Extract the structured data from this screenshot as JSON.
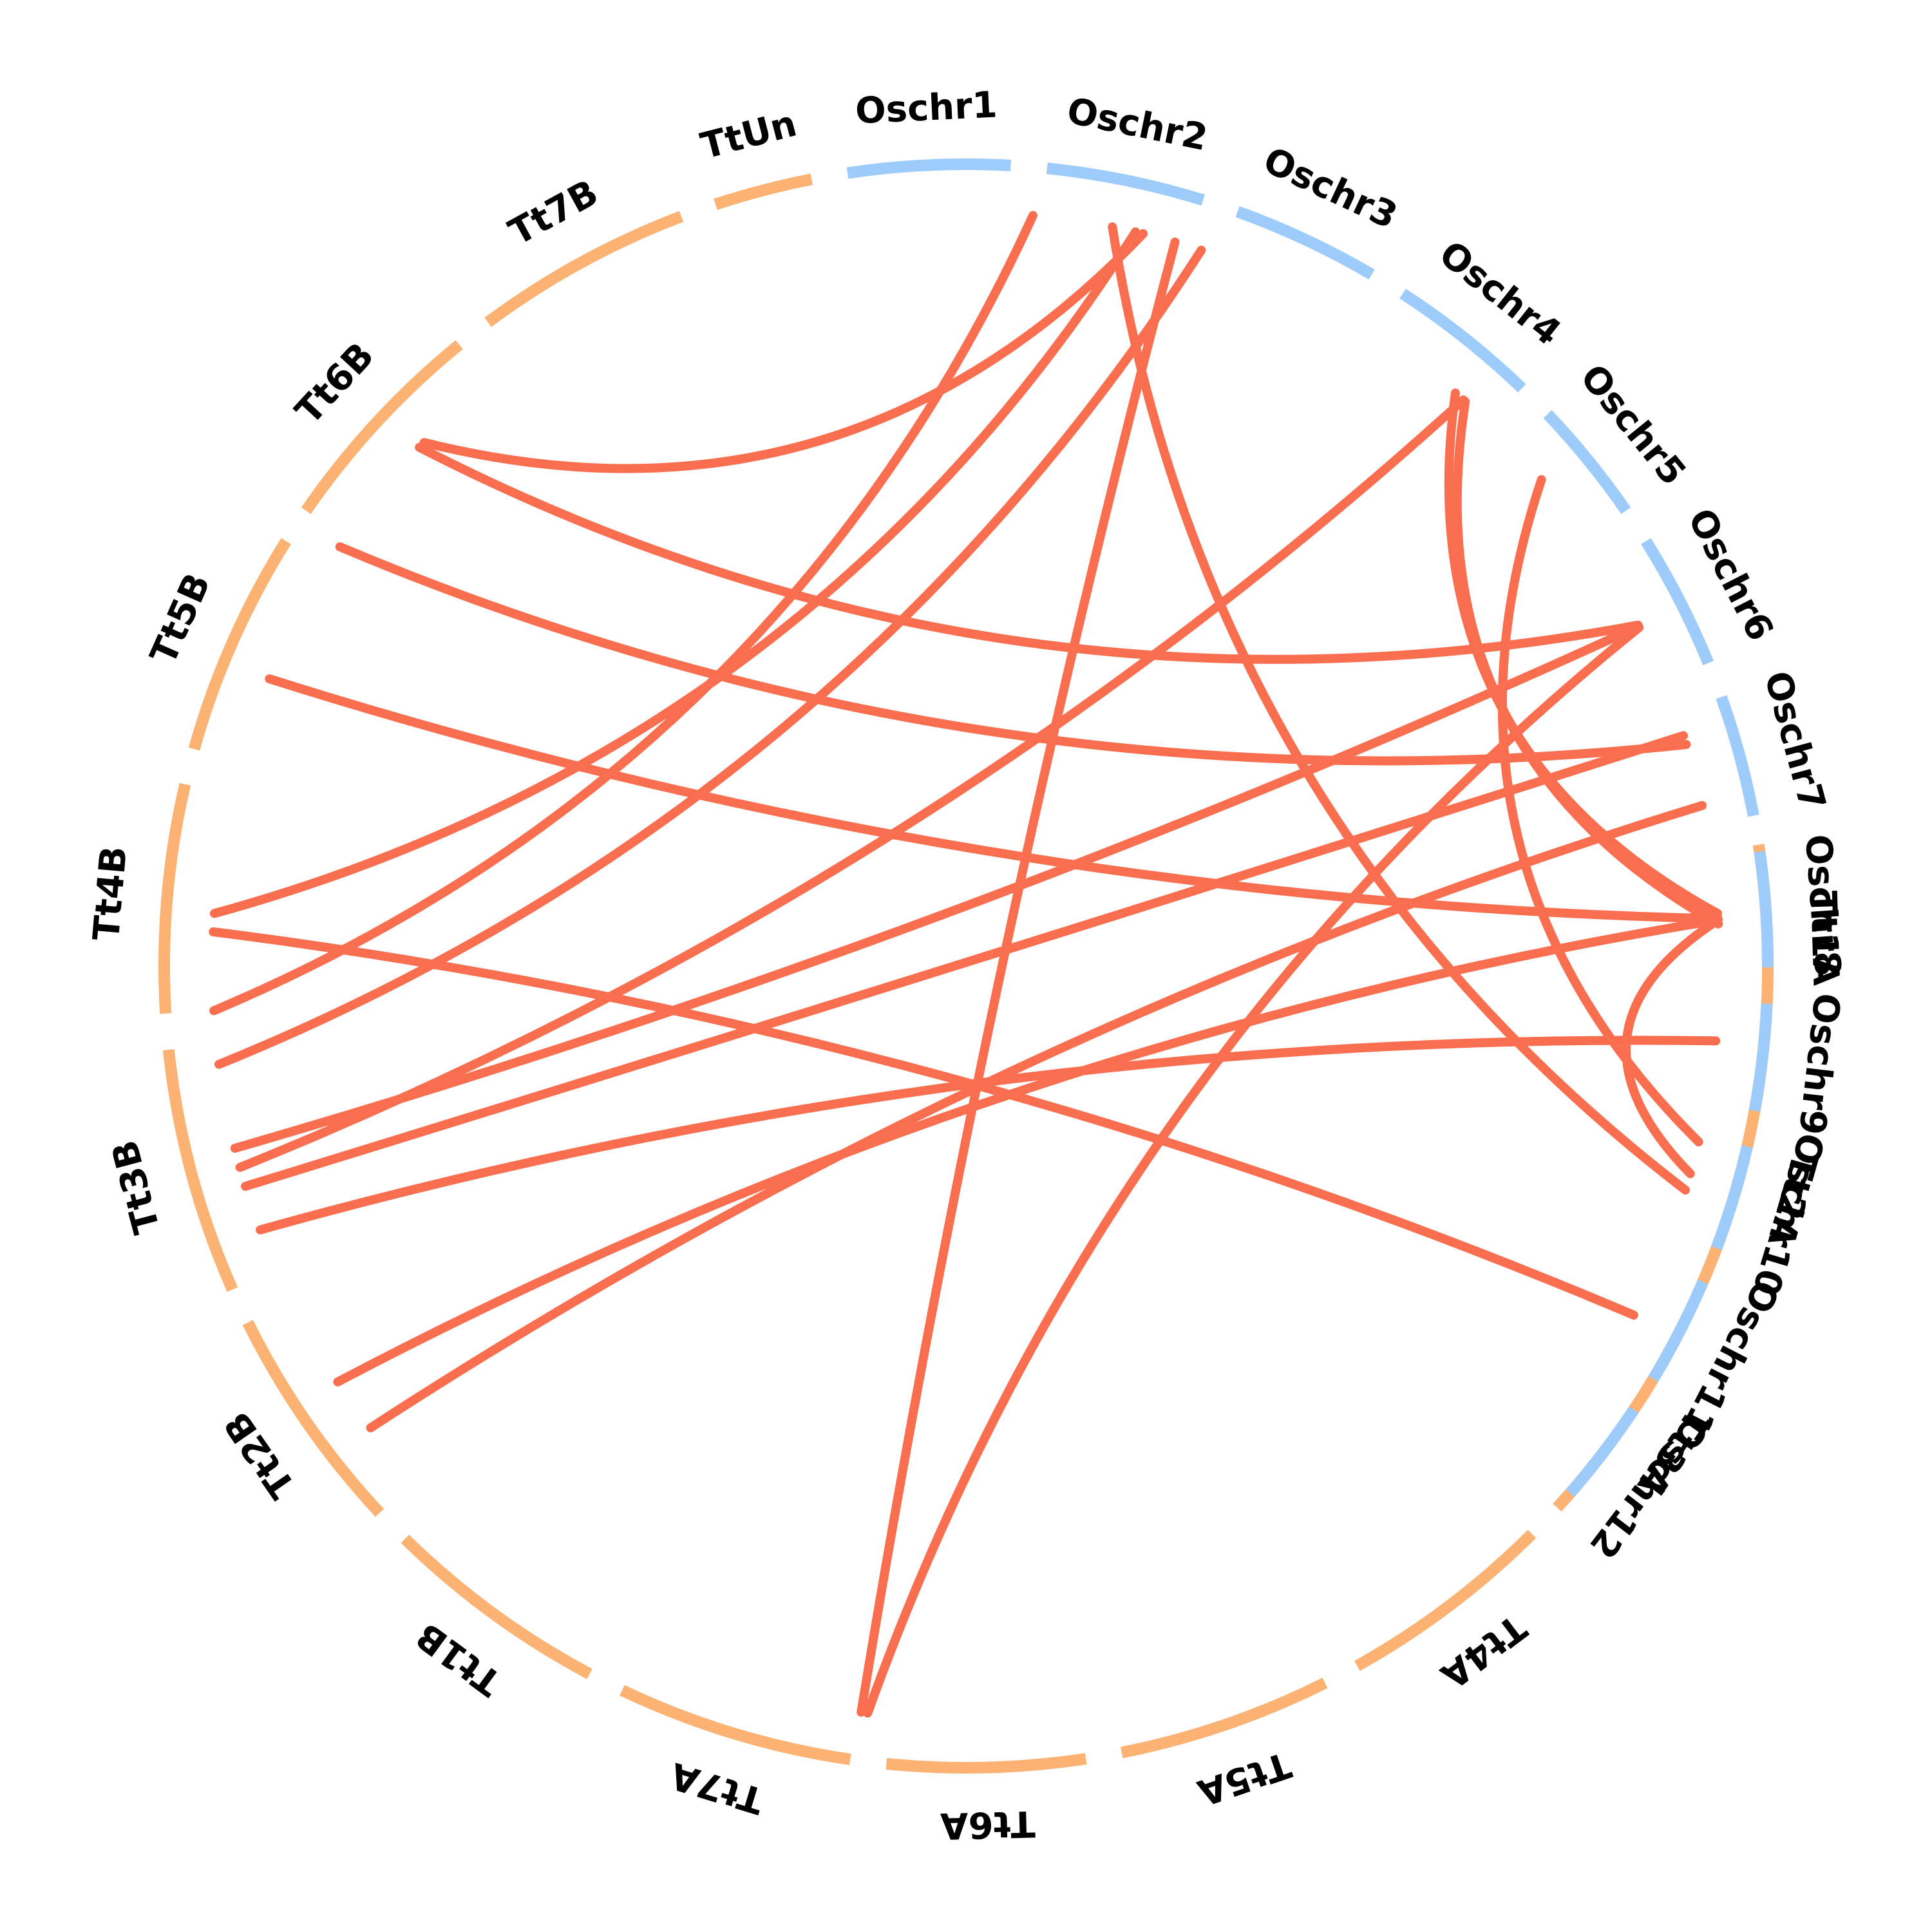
{
  "title": "",
  "segments": [
    {
      "label": "Tt1A",
      "start": 81.3,
      "end": 95.0,
      "group": "Tt"
    },
    {
      "label": "Tt2A",
      "start": 97.6,
      "end": 114.0,
      "group": "Tt"
    },
    {
      "label": "Tt3A",
      "start": 116.6,
      "end": 132.5,
      "group": "Tt"
    },
    {
      "label": "Tt4A",
      "start": 135.1,
      "end": 150.8,
      "group": "Tt"
    },
    {
      "label": "Tt5A",
      "start": 153.4,
      "end": 168.8,
      "group": "Tt"
    },
    {
      "label": "Tt6A",
      "start": 171.4,
      "end": 185.7,
      "group": "Tt"
    },
    {
      "label": "Tt7A",
      "start": 188.3,
      "end": 205.4,
      "group": "Tt"
    },
    {
      "label": "Tt1B",
      "start": 208.0,
      "end": 224.4,
      "group": "Tt"
    },
    {
      "label": "Tt2B",
      "start": 227.0,
      "end": 243.6,
      "group": "Tt"
    },
    {
      "label": "Tt3B",
      "start": 246.2,
      "end": 264.0,
      "group": "Tt"
    },
    {
      "label": "Tt4B",
      "start": 266.6,
      "end": 283.1,
      "group": "Tt"
    },
    {
      "label": "Tt5B",
      "start": 285.7,
      "end": 302.0,
      "group": "Tt"
    },
    {
      "label": "Tt6B",
      "start": 304.6,
      "end": 320.8,
      "group": "Tt"
    },
    {
      "label": "Tt7B",
      "start": 323.4,
      "end": 339.2,
      "group": "Tt"
    },
    {
      "label": "TtUn",
      "start": 341.8,
      "end": 348.9,
      "group": "Tt"
    },
    {
      "label": "Oschr1",
      "start": 351.5,
      "end": 363.2,
      "group": "Os"
    },
    {
      "label": "Oschr2",
      "start": 365.8,
      "end": 377.2,
      "group": "Os"
    },
    {
      "label": "Oschr3",
      "start": 379.8,
      "end": 390.4,
      "group": "Os"
    },
    {
      "label": "Oschr4",
      "start": 393.0,
      "end": 403.9,
      "group": "Os"
    },
    {
      "label": "Oschr5",
      "start": 406.5,
      "end": 415.4,
      "group": "Os"
    },
    {
      "label": "Oschr6",
      "start": 418.0,
      "end": 427.8,
      "group": "Os"
    },
    {
      "label": "Oschr7",
      "start": 430.4,
      "end": 439.2,
      "group": "Os"
    },
    {
      "label": "Oschr8",
      "start": 441.8,
      "end": 450.1,
      "group": "Os"
    },
    {
      "label": "Oschr9",
      "start": 452.7,
      "end": 460.4,
      "group": "Os"
    },
    {
      "label": "Oschr10",
      "start": 463.0,
      "end": 470.6,
      "group": "Os"
    },
    {
      "label": "Oschr11",
      "start": 473.2,
      "end": 481.0,
      "group": "Os"
    },
    {
      "label": "Oschr12",
      "start": 483.6,
      "end": 491.1,
      "group": "Os"
    }
  ],
  "links": [
    {
      "from": 86.0,
      "to": 400.5
    },
    {
      "from": 86.8,
      "to": 401.5
    },
    {
      "from": 103.5,
      "to": 409.8
    },
    {
      "from": 106.0,
      "to": 446.5
    },
    {
      "from": 107.3,
      "to": 371.2
    },
    {
      "from": 187.5,
      "to": 423.3
    },
    {
      "from": 188.0,
      "to": 376.1
    },
    {
      "from": 232.2,
      "to": 437.7
    },
    {
      "from": 236.5,
      "to": 446.5
    },
    {
      "from": 249.5,
      "to": 455.7
    },
    {
      "from": 253.0,
      "to": 432.2
    },
    {
      "from": 254.5,
      "to": 401.3
    },
    {
      "from": 256.0,
      "to": 423.2
    },
    {
      "from": 262.5,
      "to": 378.2
    },
    {
      "from": 266.6,
      "to": 365.1
    },
    {
      "from": 272.6,
      "to": 477.6
    },
    {
      "from": 274.0,
      "to": 373.0
    },
    {
      "from": 292.4,
      "to": 446.4
    },
    {
      "from": 303.8,
      "to": 432.9
    },
    {
      "from": 313.5,
      "to": 423.1
    },
    {
      "from": 314.0,
      "to": 373.6
    }
  ],
  "colors": {
    "tt_segment": "#FBB272",
    "os_segment": "#9DCCFA",
    "link": "#F86E4E",
    "label": "#000000"
  }
}
